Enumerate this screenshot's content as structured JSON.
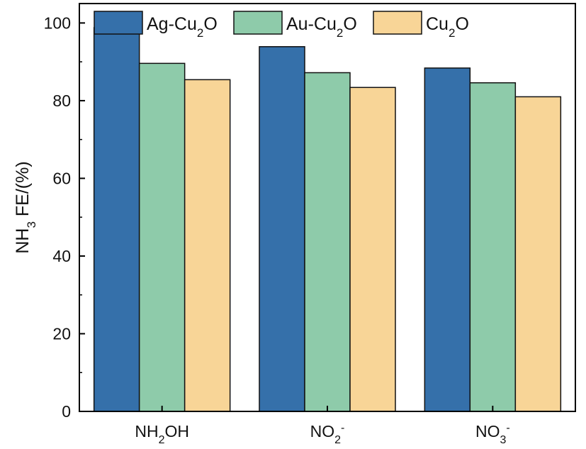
{
  "chart_data": {
    "type": "bar",
    "categories": [
      "NH2OH",
      "NO2-",
      "NO3-"
    ],
    "category_labels": [
      {
        "base": "NH",
        "sub": "2",
        "rest": "OH",
        "sup": ""
      },
      {
        "base": "NO",
        "sub": "2",
        "rest": "",
        "sup": "-"
      },
      {
        "base": "NO",
        "sub": "3",
        "rest": "",
        "sup": "-"
      }
    ],
    "series": [
      {
        "name": "Ag-Cu2O",
        "name_parts": {
          "base": "Ag-Cu",
          "sub": "2",
          "rest": "O"
        },
        "color": "#3570AA",
        "values": [
          98.8,
          93.9,
          88.4
        ]
      },
      {
        "name": "Au-Cu2O",
        "name_parts": {
          "base": "Au-Cu",
          "sub": "2",
          "rest": "O"
        },
        "color": "#8ECBAA",
        "values": [
          89.6,
          87.2,
          84.6
        ]
      },
      {
        "name": "Cu2O",
        "name_parts": {
          "base": "Cu",
          "sub": "2",
          "rest": "O"
        },
        "color": "#F8D597",
        "values": [
          85.4,
          83.4,
          81.0
        ]
      }
    ],
    "ylabel": "NH3 FE/(%)",
    "ylabel_parts": {
      "base": "NH",
      "sub": "3",
      "rest": " FE/(%)"
    },
    "xlabel": "",
    "ylim": [
      0,
      105
    ],
    "yticks": [
      0,
      20,
      40,
      60,
      80,
      100
    ],
    "grid": false,
    "legend": "top"
  }
}
